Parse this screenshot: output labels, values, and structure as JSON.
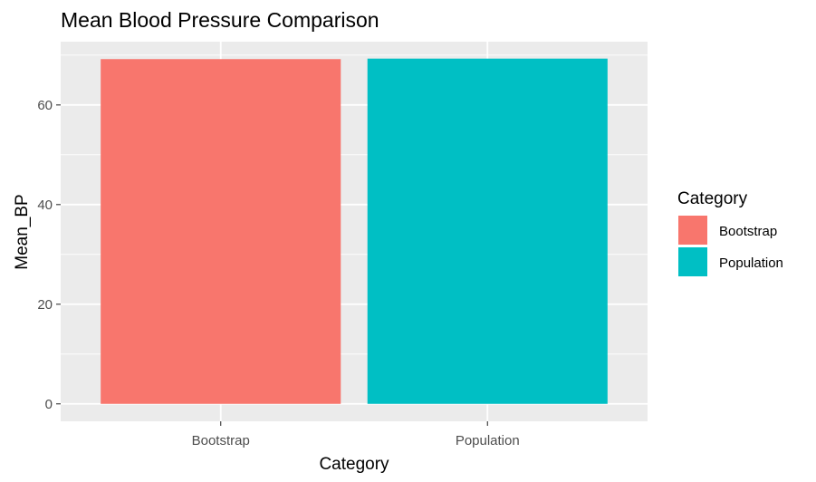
{
  "chart_data": {
    "type": "bar",
    "title": "Mean Blood Pressure Comparison",
    "xlabel": "Category",
    "ylabel": "Mean_BP",
    "categories": [
      "Bootstrap",
      "Population"
    ],
    "values": [
      69.2,
      69.3
    ],
    "colors": [
      "#F8766D",
      "#00BFC4"
    ],
    "ylim": [
      -3.5,
      72.7
    ],
    "yticks": [
      0,
      20,
      40,
      60
    ],
    "ytick_labels": [
      "0",
      "20",
      "40",
      "60"
    ],
    "grid": true,
    "panel_background": "#EBEBEB",
    "grid_color": "#FFFFFF",
    "legend": {
      "title": "Category",
      "position": "right",
      "entries": [
        "Bootstrap",
        "Population"
      ]
    }
  }
}
